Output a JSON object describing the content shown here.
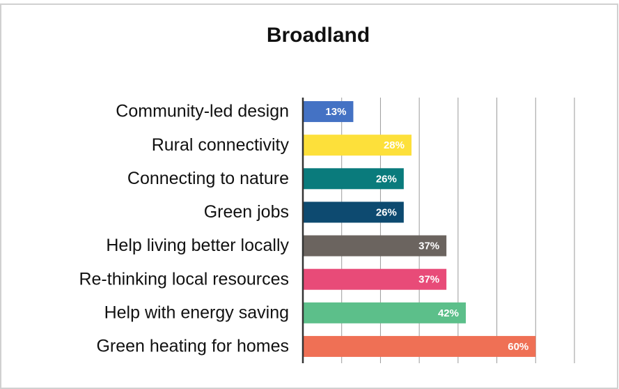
{
  "chart_data": {
    "type": "barh",
    "title": "Broadland",
    "categories": [
      "Community-led design",
      "Rural connectivity",
      "Connecting to nature",
      "Green jobs",
      "Help living better locally",
      "Re-thinking local resources",
      "Help with energy saving",
      "Green heating for homes"
    ],
    "values": [
      13,
      28,
      26,
      26,
      37,
      37,
      42,
      60
    ],
    "value_labels": [
      "13%",
      "28%",
      "26%",
      "26%",
      "37%",
      "37%",
      "42%",
      "60%"
    ],
    "colors": [
      "#4472c4",
      "#fde03a",
      "#0a7b7c",
      "#0d4a70",
      "#6b645f",
      "#e84b78",
      "#5cbf8a",
      "#ef7055"
    ],
    "xlim": [
      0,
      70
    ],
    "xticks": [
      0,
      10,
      20,
      30,
      40,
      50,
      60,
      70
    ],
    "grid": true
  }
}
